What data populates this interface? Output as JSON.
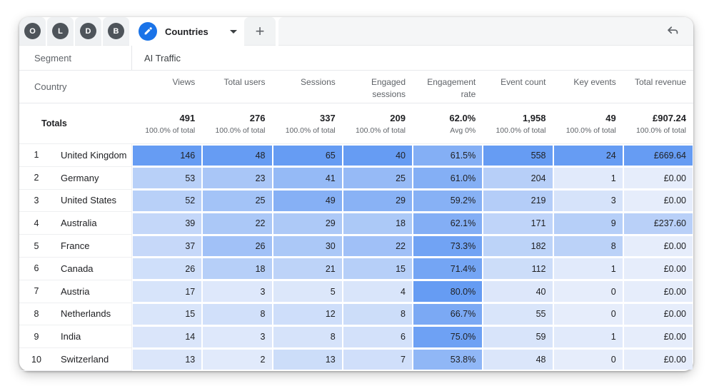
{
  "tab_bar": {
    "mini_tabs": [
      {
        "letter": "O"
      },
      {
        "letter": "L"
      },
      {
        "letter": "D"
      },
      {
        "letter": "B"
      }
    ],
    "active_tab_label": "Countries",
    "add_tab_label": "+"
  },
  "colors": {
    "accent": "#1A73E8",
    "heat_low": "#E6EDFB",
    "heat_high": "#669CF3"
  },
  "segment_row": {
    "label": "Segment",
    "value": "AI Traffic"
  },
  "table": {
    "dimension_header": "Country",
    "metric_headers": [
      "Views",
      "Total users",
      "Sessions",
      "Engaged sessions",
      "Engagement rate",
      "Event count",
      "Key events",
      "Total revenue"
    ],
    "totals": {
      "label": "Totals",
      "values": [
        "491",
        "276",
        "337",
        "209",
        "62.0%",
        "1,958",
        "49",
        "£907.24"
      ],
      "subtexts": [
        "100.0% of total",
        "100.0% of total",
        "100.0% of total",
        "100.0% of total",
        "Avg 0%",
        "100.0% of total",
        "100.0% of total",
        "100.0% of total"
      ]
    },
    "rows": [
      {
        "rank": "1",
        "country": "United Kingdom",
        "labels": [
          "146",
          "48",
          "65",
          "40",
          "61.5%",
          "558",
          "24",
          "£669.64"
        ],
        "values": [
          146,
          48,
          65,
          40,
          61.5,
          558,
          24,
          669.64
        ]
      },
      {
        "rank": "2",
        "country": "Germany",
        "labels": [
          "53",
          "23",
          "41",
          "25",
          "61.0%",
          "204",
          "1",
          "£0.00"
        ],
        "values": [
          53,
          23,
          41,
          25,
          61.0,
          204,
          1,
          0
        ]
      },
      {
        "rank": "3",
        "country": "United States",
        "labels": [
          "52",
          "25",
          "49",
          "29",
          "59.2%",
          "219",
          "3",
          "£0.00"
        ],
        "values": [
          52,
          25,
          49,
          29,
          59.2,
          219,
          3,
          0
        ]
      },
      {
        "rank": "4",
        "country": "Australia",
        "labels": [
          "39",
          "22",
          "29",
          "18",
          "62.1%",
          "171",
          "9",
          "£237.60"
        ],
        "values": [
          39,
          22,
          29,
          18,
          62.1,
          171,
          9,
          237.6
        ]
      },
      {
        "rank": "5",
        "country": "France",
        "labels": [
          "37",
          "26",
          "30",
          "22",
          "73.3%",
          "182",
          "8",
          "£0.00"
        ],
        "values": [
          37,
          26,
          30,
          22,
          73.3,
          182,
          8,
          0
        ]
      },
      {
        "rank": "6",
        "country": "Canada",
        "labels": [
          "26",
          "18",
          "21",
          "15",
          "71.4%",
          "112",
          "1",
          "£0.00"
        ],
        "values": [
          26,
          18,
          21,
          15,
          71.4,
          112,
          1,
          0
        ]
      },
      {
        "rank": "7",
        "country": "Austria",
        "labels": [
          "17",
          "3",
          "5",
          "4",
          "80.0%",
          "40",
          "0",
          "£0.00"
        ],
        "values": [
          17,
          3,
          5,
          4,
          80.0,
          40,
          0,
          0
        ]
      },
      {
        "rank": "8",
        "country": "Netherlands",
        "labels": [
          "15",
          "8",
          "12",
          "8",
          "66.7%",
          "55",
          "0",
          "£0.00"
        ],
        "values": [
          15,
          8,
          12,
          8,
          66.7,
          55,
          0,
          0
        ]
      },
      {
        "rank": "9",
        "country": "India",
        "labels": [
          "14",
          "3",
          "8",
          "6",
          "75.0%",
          "59",
          "1",
          "£0.00"
        ],
        "values": [
          14,
          3,
          8,
          6,
          75.0,
          59,
          1,
          0
        ]
      },
      {
        "rank": "10",
        "country": "Switzerland",
        "labels": [
          "13",
          "2",
          "13",
          "7",
          "53.8%",
          "48",
          "0",
          "£0.00"
        ],
        "values": [
          13,
          2,
          13,
          7,
          53.8,
          48,
          0,
          0
        ]
      }
    ]
  }
}
